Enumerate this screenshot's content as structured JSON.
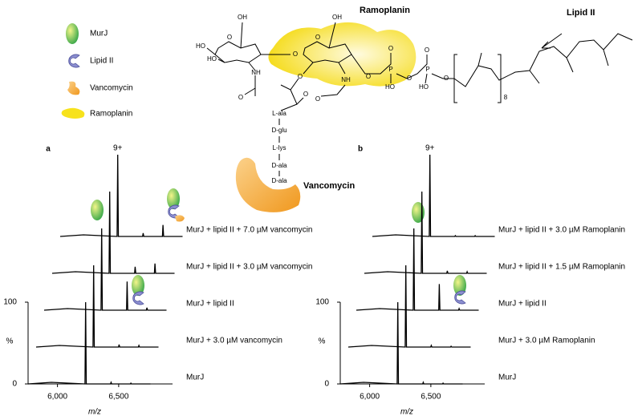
{
  "legend": [
    "MurJ",
    "Lipid II",
    "Vancomycin",
    "Ramoplanin"
  ],
  "structure": {
    "labels": [
      "OH",
      "O",
      "HO",
      "HO",
      "NH",
      "O",
      "O",
      "OH",
      "O",
      "O",
      "NH",
      "O",
      "O",
      "O",
      "O",
      "P",
      "HO",
      "O",
      "O",
      "P",
      "HO",
      "O",
      "8",
      "L-ala",
      "D-glu",
      "L-lys",
      "D-ala",
      "D-ala"
    ],
    "ramoplanin": "Ramoplanin",
    "lipid_ii": "Lipid II",
    "vancomycin": "Vancomycin"
  },
  "chart_data": [
    {
      "type": "line",
      "panel_label": "a",
      "annotation": "9+",
      "x_label": "m/z",
      "y_label": "%",
      "color": "#000000",
      "xlim": [
        5760,
        6940
      ],
      "xticks": [
        {
          "value": 6000,
          "label": "6,000"
        },
        {
          "value": 6500,
          "label": "6,500"
        }
      ],
      "ylim": [
        0,
        100
      ],
      "yticks": [
        0,
        100
      ],
      "x": [
        5760,
        5950,
        6225,
        6230,
        6235,
        6433,
        6438,
        6443,
        6595,
        6600,
        6605,
        6760
      ],
      "series": [
        {
          "name": "MurJ",
          "values": [
            0,
            2,
            0,
            100,
            0,
            0,
            2,
            0,
            0,
            1,
            0,
            0
          ]
        },
        {
          "name": "MurJ + 3.0 µM vancomycin",
          "values": [
            0,
            2,
            0,
            100,
            0,
            0,
            3,
            0,
            0,
            2,
            0,
            0
          ]
        },
        {
          "name": "MurJ + lipid II",
          "values": [
            0,
            2,
            0,
            100,
            0,
            0,
            35,
            0,
            0,
            3,
            0,
            0
          ]
        },
        {
          "name": "MurJ + lipid II + 3.0 µM vancomycin",
          "values": [
            0,
            2,
            0,
            100,
            0,
            0,
            8,
            0,
            0,
            12,
            0,
            0
          ]
        },
        {
          "name": "MurJ + lipid II + 7.0 µM vancomycin",
          "values": [
            0,
            2,
            0,
            100,
            0,
            0,
            4,
            0,
            0,
            14,
            0,
            0
          ]
        }
      ]
    },
    {
      "type": "line",
      "panel_label": "b",
      "annotation": "9+",
      "x_label": "m/z",
      "y_label": "%",
      "color": "#000000",
      "xlim": [
        5760,
        6940
      ],
      "xticks": [
        {
          "value": 6000,
          "label": "6,000"
        },
        {
          "value": 6500,
          "label": "6,500"
        }
      ],
      "ylim": [
        0,
        100
      ],
      "yticks": [
        0,
        100
      ],
      "x": [
        5760,
        5950,
        6225,
        6230,
        6235,
        6433,
        6438,
        6443,
        6595,
        6600,
        6605,
        6760
      ],
      "series": [
        {
          "name": "MurJ",
          "values": [
            0,
            2,
            0,
            100,
            0,
            0,
            2,
            0,
            0,
            1,
            0,
            0
          ]
        },
        {
          "name": "MurJ + 3.0 µM Ramoplanin",
          "values": [
            0,
            2,
            0,
            100,
            0,
            0,
            2,
            0,
            0,
            1,
            0,
            0
          ]
        },
        {
          "name": "MurJ + lipid II",
          "values": [
            0,
            2,
            0,
            100,
            0,
            0,
            32,
            0,
            0,
            2,
            0,
            0
          ]
        },
        {
          "name": "MurJ + lipid II + 1.5 µM Ramoplanin",
          "values": [
            0,
            2,
            0,
            100,
            0,
            0,
            3,
            0,
            0,
            2,
            0,
            0
          ]
        },
        {
          "name": "MurJ + lipid II + 3.0 µM Ramoplanin",
          "values": [
            0,
            2,
            0,
            100,
            0,
            0,
            1,
            0,
            0,
            1,
            0,
            0
          ]
        }
      ]
    }
  ]
}
